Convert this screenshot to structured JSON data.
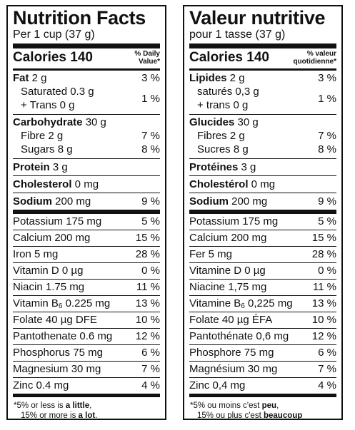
{
  "en": {
    "title": "Nutrition Facts",
    "serving": "Per 1 cup (37 g)",
    "calories_label": "Calories 140",
    "dv_head_1": "% Daily",
    "dv_head_2": "Value*",
    "fat_label": "Fat",
    "fat_amount": " 2 g",
    "fat_pct": "3 %",
    "sat_label": "Saturated 0.3 g",
    "trans_label": "+ Trans 0 g",
    "sat_trans_pct": "1 %",
    "carb_label": "Carbohydrate",
    "carb_amount": " 30 g",
    "fibre_label": "Fibre 2 g",
    "fibre_pct": "7 %",
    "sugars_label": "Sugars 8 g",
    "sugars_pct": "8 %",
    "protein_label": "Protein",
    "protein_amount": " 3 g",
    "chol_label": "Cholesterol",
    "chol_amount": " 0 mg",
    "sodium_label": "Sodium",
    "sodium_amount": " 200 mg",
    "sodium_pct": "9 %",
    "micro": [
      {
        "name": "Potassium 175 mg",
        "pct": "5 %"
      },
      {
        "name": "Calcium 200 mg",
        "pct": "15 %"
      },
      {
        "name": "Iron 5 mg",
        "pct": "28 %"
      },
      {
        "name": "Vitamin D 0 µg",
        "pct": "0 %"
      },
      {
        "name": "Niacin 1.75 mg",
        "pct": "11 %"
      },
      {
        "name_pre": "Vitamin B",
        "sub": "6",
        "name_post": " 0.225 mg",
        "pct": "13 %"
      },
      {
        "name": "Folate 40 µg DFE",
        "pct": "10 %"
      },
      {
        "name": "Pantothenate 0.6 mg",
        "pct": "12 %"
      },
      {
        "name": "Phosphorus 75 mg",
        "pct": "6 %"
      },
      {
        "name": "Magnesium 30 mg",
        "pct": "7 %"
      },
      {
        "name": "Zinc 0.4 mg",
        "pct": "4 %"
      }
    ],
    "foot_1a": "*5% or less is ",
    "foot_1b": "a little",
    "foot_1c": ",",
    "foot_2a": "15% or more is ",
    "foot_2b": "a lot",
    "foot_2c": "."
  },
  "fr": {
    "title": "Valeur nutritive",
    "serving": "pour 1 tasse (37 g)",
    "calories_label": "Calories 140",
    "dv_head_1": "% valeur",
    "dv_head_2": "quotidienne*",
    "fat_label": "Lipides",
    "fat_amount": " 2 g",
    "fat_pct": "3 %",
    "sat_label": "saturés 0,3 g",
    "trans_label": "+ trans 0 g",
    "sat_trans_pct": "1 %",
    "carb_label": "Glucides",
    "carb_amount": " 30 g",
    "fibre_label": "Fibres 2 g",
    "fibre_pct": "7 %",
    "sugars_label": "Sucres 8 g",
    "sugars_pct": "8 %",
    "protein_label": "Protéines",
    "protein_amount": " 3 g",
    "chol_label": "Cholestérol",
    "chol_amount": " 0 mg",
    "sodium_label": "Sodium",
    "sodium_amount": " 200 mg",
    "sodium_pct": "9 %",
    "micro": [
      {
        "name": "Potassium 175 mg",
        "pct": "5 %"
      },
      {
        "name": "Calcium 200 mg",
        "pct": "15 %"
      },
      {
        "name": "Fer 5 mg",
        "pct": "28 %"
      },
      {
        "name": "Vitamine D 0 µg",
        "pct": "0 %"
      },
      {
        "name": "Niacine 1,75 mg",
        "pct": "11 %"
      },
      {
        "name_pre": "Vitamine B",
        "sub": "6",
        "name_post": " 0,225 mg",
        "pct": "13 %"
      },
      {
        "name": "Folate 40 µg ÉFA",
        "pct": "10 %"
      },
      {
        "name": "Pantothénate 0,6 mg",
        "pct": "12 %"
      },
      {
        "name": "Phosphore 75 mg",
        "pct": "6 %"
      },
      {
        "name": "Magnésium 30 mg",
        "pct": "7 %"
      },
      {
        "name": "Zinc 0,4 mg",
        "pct": "4 %"
      }
    ],
    "foot_1a": "*5% ou moins c'est ",
    "foot_1b": "peu",
    "foot_1c": ",",
    "foot_2a": "15% ou plus c'est ",
    "foot_2b": "beaucoup",
    "foot_2c": ""
  }
}
